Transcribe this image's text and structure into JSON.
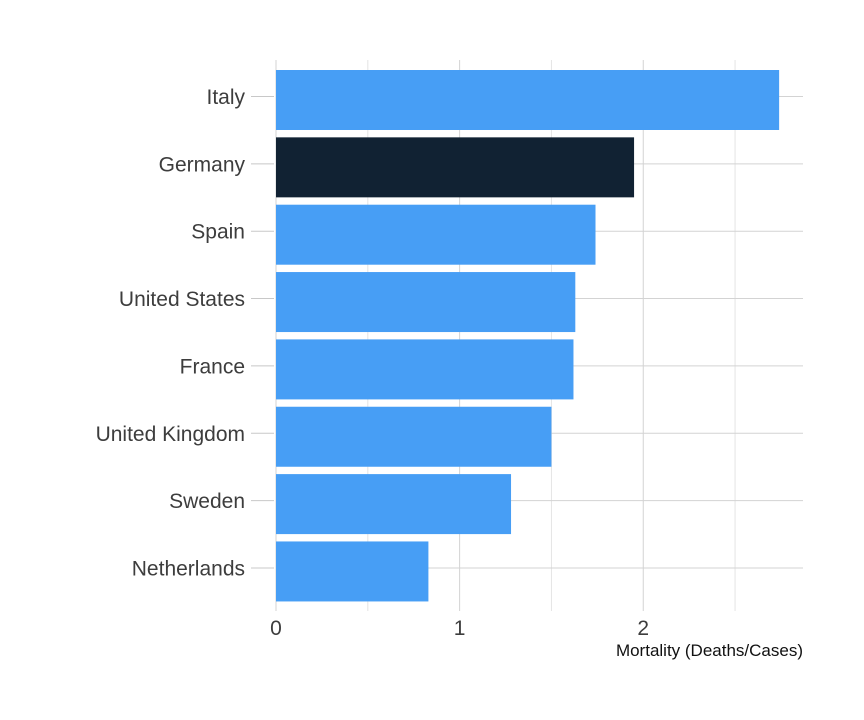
{
  "chart_data": {
    "type": "bar",
    "orientation": "horizontal",
    "title": "",
    "xlabel": "Mortality (Deaths/Cases)",
    "ylabel": "",
    "xlim": [
      0,
      2.87
    ],
    "x_ticks": [
      "0",
      "1",
      "2"
    ],
    "x_tick_values": [
      0,
      1,
      2
    ],
    "categories": [
      "Italy",
      "Germany",
      "Spain",
      "United States",
      "France",
      "United Kingdom",
      "Sweden",
      "Netherlands"
    ],
    "values": [
      2.74,
      1.95,
      1.74,
      1.63,
      1.62,
      1.5,
      1.28,
      0.83
    ],
    "highlight_category": "Germany",
    "colors": {
      "bar": "#479ef5",
      "highlight": "#112233"
    },
    "grid": true,
    "legend": "none"
  }
}
